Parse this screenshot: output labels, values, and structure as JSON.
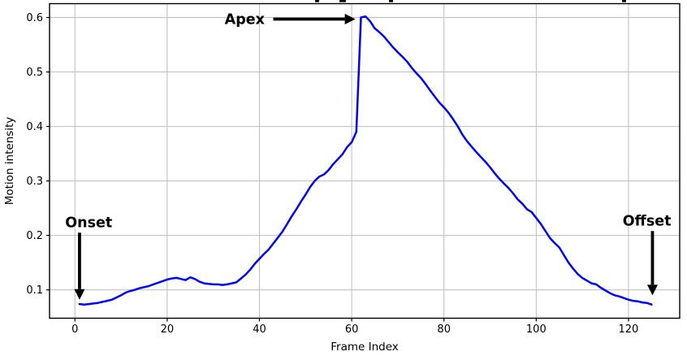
{
  "chart_data": {
    "type": "line",
    "xlabel": "Frame Index",
    "ylabel": "Motion intensity",
    "x_ticks": [
      0,
      20,
      40,
      60,
      80,
      100,
      120
    ],
    "y_ticks": [
      0.1,
      0.2,
      0.3,
      0.4,
      0.5,
      0.6
    ],
    "xlim": [
      -5.5,
      131.1
    ],
    "ylim": [
      0.048,
      0.6254
    ],
    "grid": true,
    "legend": "none",
    "line_color": "#0000ff",
    "grid_color": "#bdbdbd",
    "spine_color": "#000000",
    "series": [
      {
        "name": "motion-intensity",
        "x_start": 1,
        "x_step": 1,
        "values": [
          0.074,
          0.073,
          0.074,
          0.075,
          0.076,
          0.078,
          0.08,
          0.082,
          0.086,
          0.09,
          0.095,
          0.098,
          0.1,
          0.103,
          0.105,
          0.107,
          0.11,
          0.113,
          0.116,
          0.119,
          0.121,
          0.122,
          0.12,
          0.118,
          0.123,
          0.12,
          0.115,
          0.112,
          0.111,
          0.11,
          0.11,
          0.109,
          0.11,
          0.112,
          0.114,
          0.121,
          0.128,
          0.137,
          0.148,
          0.157,
          0.166,
          0.174,
          0.185,
          0.196,
          0.207,
          0.221,
          0.235,
          0.248,
          0.262,
          0.275,
          0.289,
          0.3,
          0.308,
          0.312,
          0.32,
          0.331,
          0.34,
          0.349,
          0.362,
          0.371,
          0.39,
          0.6,
          0.602,
          0.593,
          0.58,
          0.573,
          0.565,
          0.555,
          0.545,
          0.536,
          0.528,
          0.519,
          0.508,
          0.498,
          0.489,
          0.478,
          0.466,
          0.455,
          0.444,
          0.435,
          0.425,
          0.413,
          0.4,
          0.385,
          0.373,
          0.363,
          0.353,
          0.344,
          0.335,
          0.325,
          0.314,
          0.304,
          0.295,
          0.287,
          0.277,
          0.266,
          0.258,
          0.248,
          0.243,
          0.232,
          0.221,
          0.208,
          0.195,
          0.186,
          0.178,
          0.164,
          0.15,
          0.139,
          0.129,
          0.122,
          0.117,
          0.112,
          0.11,
          0.104,
          0.099,
          0.094,
          0.09,
          0.088,
          0.085,
          0.082,
          0.08,
          0.079,
          0.077,
          0.076,
          0.073
        ]
      }
    ],
    "annotations": [
      {
        "label": "Onset",
        "text_at": [
          3.0,
          0.224
        ],
        "arrow_from": [
          1.0,
          0.205
        ],
        "arrow_to": [
          1.0,
          0.082
        ],
        "direction": "down"
      },
      {
        "label": "Apex",
        "text_at": [
          36.8,
          0.597
        ],
        "arrow_from": [
          43.0,
          0.597
        ],
        "arrow_to": [
          60.8,
          0.597
        ],
        "direction": "right"
      },
      {
        "label": "Offset",
        "text_at": [
          124.0,
          0.227
        ],
        "arrow_from": [
          125.2,
          0.208
        ],
        "arrow_to": [
          125.2,
          0.09
        ],
        "direction": "down"
      }
    ]
  }
}
